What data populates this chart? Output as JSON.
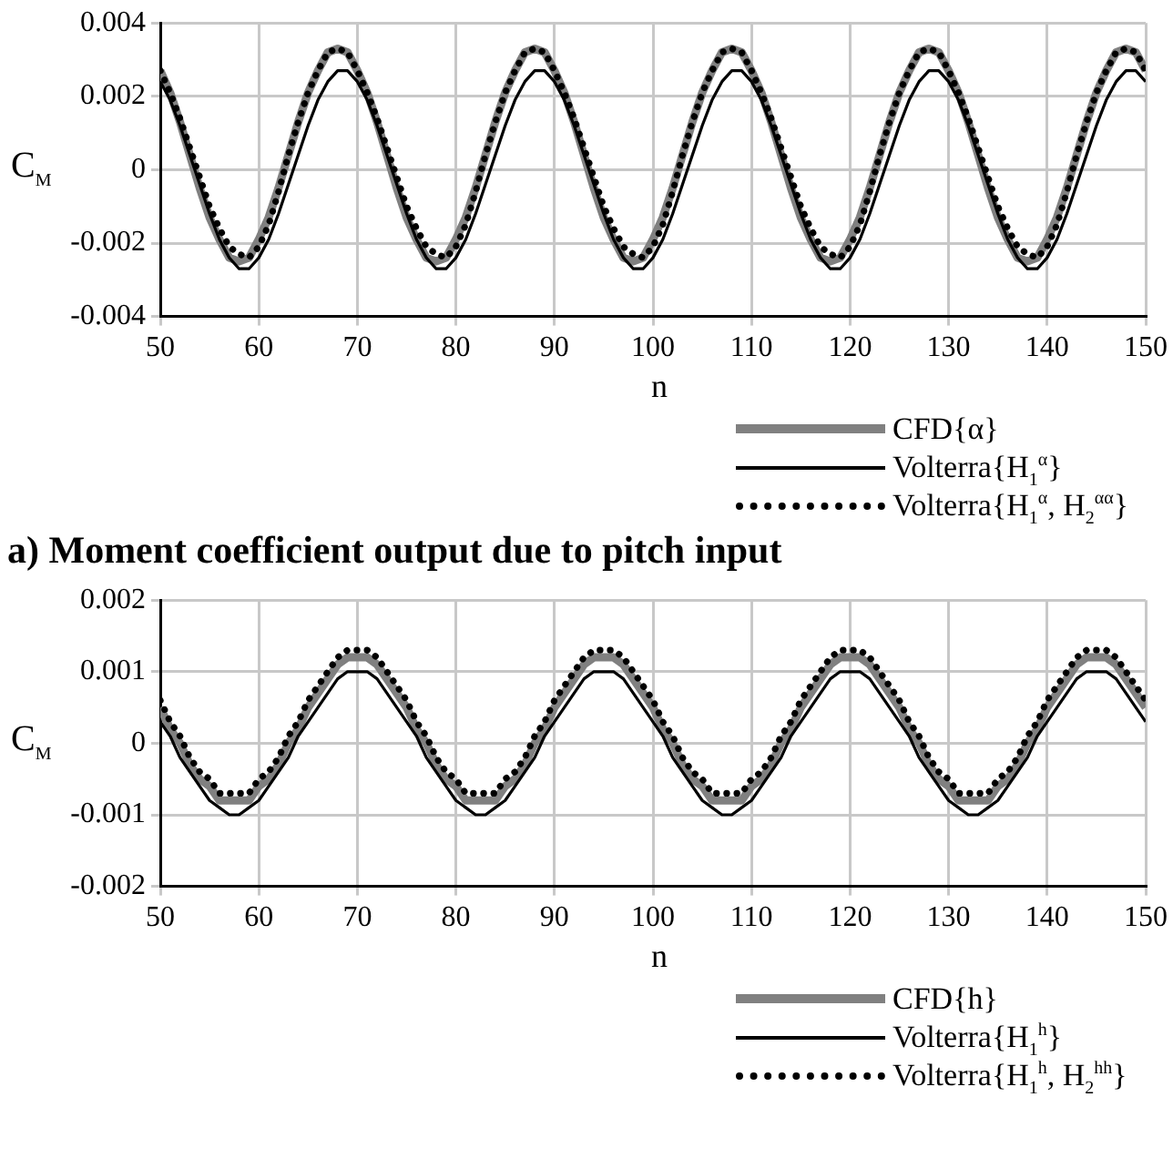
{
  "chart_data": [
    {
      "type": "line",
      "title": "a) Moment coefficient output due to pitch input",
      "xlabel": "n",
      "ylabel": "C$_{M}$",
      "x": [
        50,
        51,
        52,
        53,
        54,
        55,
        56,
        57,
        58,
        59,
        60,
        61,
        62,
        63,
        64,
        65,
        66,
        67,
        68,
        69,
        70,
        71,
        72,
        73,
        74,
        75,
        76,
        77,
        78,
        79,
        80,
        81,
        82,
        83,
        84,
        85,
        86,
        87,
        88,
        89,
        90,
        91,
        92,
        93,
        94,
        95,
        96,
        97,
        98,
        99,
        100,
        101,
        102,
        103,
        104,
        105,
        106,
        107,
        108,
        109,
        110,
        111,
        112,
        113,
        114,
        115,
        116,
        117,
        118,
        119,
        120,
        121,
        122,
        123,
        124,
        125,
        126,
        127,
        128,
        129,
        130,
        131,
        132,
        133,
        134,
        135,
        136,
        137,
        138,
        139,
        140,
        141,
        142,
        143,
        144,
        145,
        146,
        147,
        148,
        149,
        150
      ],
      "series": [
        {
          "name": "CFD{α}",
          "color": "#808080",
          "line_style": "solid",
          "values": [
            0.0027,
            0.0021,
            0.0013,
            0.0004,
            -0.0005,
            -0.0013,
            -0.0019,
            -0.0024,
            -0.0025,
            -0.0024,
            -0.0019,
            -0.0013,
            -0.0005,
            0.0004,
            0.0013,
            0.0021,
            0.0027,
            0.0032,
            0.0033,
            0.0032,
            0.0027,
            0.0021,
            0.0013,
            0.0004,
            -0.0005,
            -0.0013,
            -0.0019,
            -0.0024,
            -0.0025,
            -0.0024,
            -0.0019,
            -0.0013,
            -0.0005,
            0.0004,
            0.0013,
            0.0021,
            0.0027,
            0.0032,
            0.0033,
            0.0032,
            0.0027,
            0.0021,
            0.0013,
            0.0004,
            -0.0005,
            -0.0013,
            -0.0019,
            -0.0024,
            -0.0025,
            -0.0024,
            -0.0019,
            -0.0013,
            -0.0005,
            0.0004,
            0.0013,
            0.0021,
            0.0027,
            0.0032,
            0.0033,
            0.0032,
            0.0027,
            0.0021,
            0.0013,
            0.0004,
            -0.0005,
            -0.0013,
            -0.0019,
            -0.0024,
            -0.0025,
            -0.0024,
            -0.0019,
            -0.0013,
            -0.0005,
            0.0004,
            0.0013,
            0.0021,
            0.0027,
            0.0032,
            0.0033,
            0.0032,
            0.0027,
            0.0021,
            0.0013,
            0.0004,
            -0.0005,
            -0.0013,
            -0.0019,
            -0.0024,
            -0.0025,
            -0.0024,
            -0.0019,
            -0.0013,
            -0.0005,
            0.0004,
            0.0013,
            0.0021,
            0.0027,
            0.0032,
            0.0033,
            0.0032,
            0.0027
          ]
        },
        {
          "name": "Volterra{H$_{1}$$^{α}$}",
          "color": "#000000",
          "line_style": "solid",
          "values": [
            0.0024,
            0.0019,
            0.0012,
            0.0004,
            -0.0004,
            -0.0012,
            -0.0019,
            -0.0024,
            -0.0027,
            -0.0027,
            -0.0024,
            -0.0019,
            -0.0012,
            -0.0004,
            0.0004,
            0.0012,
            0.0019,
            0.0024,
            0.0027,
            0.0027,
            0.0024,
            0.0019,
            0.0012,
            0.0004,
            -0.0004,
            -0.0012,
            -0.0019,
            -0.0024,
            -0.0027,
            -0.0027,
            -0.0024,
            -0.0019,
            -0.0012,
            -0.0004,
            0.0004,
            0.0012,
            0.0019,
            0.0024,
            0.0027,
            0.0027,
            0.0024,
            0.0019,
            0.0012,
            0.0004,
            -0.0004,
            -0.0012,
            -0.0019,
            -0.0024,
            -0.0027,
            -0.0027,
            -0.0024,
            -0.0019,
            -0.0012,
            -0.0004,
            0.0004,
            0.0012,
            0.0019,
            0.0024,
            0.0027,
            0.0027,
            0.0024,
            0.0019,
            0.0012,
            0.0004,
            -0.0004,
            -0.0012,
            -0.0019,
            -0.0024,
            -0.0027,
            -0.0027,
            -0.0024,
            -0.0019,
            -0.0012,
            -0.0004,
            0.0004,
            0.0012,
            0.0019,
            0.0024,
            0.0027,
            0.0027,
            0.0024,
            0.0019,
            0.0012,
            0.0004,
            -0.0004,
            -0.0012,
            -0.0019,
            -0.0024,
            -0.0027,
            -0.0027,
            -0.0024,
            -0.0019,
            -0.0012,
            -0.0004,
            0.0004,
            0.0012,
            0.0019,
            0.0024,
            0.0027,
            0.0027,
            0.0024
          ]
        },
        {
          "name": "Volterra{H$_{1}$$^{α}$, H$_{2}$$^{αα}$}",
          "color": "#000000",
          "line_style": "dotted",
          "values": [
            0.0027,
            0.0021,
            0.0014,
            0.0006,
            -0.0002,
            -0.001,
            -0.0016,
            -0.0021,
            -0.0023,
            -0.0024,
            -0.0021,
            -0.0015,
            -0.0006,
            0.0004,
            0.0013,
            0.0021,
            0.0027,
            0.0032,
            0.0033,
            0.0032,
            0.0027,
            0.0021,
            0.0014,
            0.0006,
            -0.0002,
            -0.001,
            -0.0016,
            -0.0021,
            -0.0023,
            -0.0024,
            -0.0021,
            -0.0015,
            -0.0006,
            0.0004,
            0.0013,
            0.0021,
            0.0027,
            0.0032,
            0.0033,
            0.0032,
            0.0027,
            0.0021,
            0.0014,
            0.0006,
            -0.0002,
            -0.001,
            -0.0016,
            -0.0021,
            -0.0023,
            -0.0024,
            -0.0021,
            -0.0015,
            -0.0006,
            0.0004,
            0.0013,
            0.0021,
            0.0027,
            0.0032,
            0.0033,
            0.0032,
            0.0027,
            0.0021,
            0.0014,
            0.0006,
            -0.0002,
            -0.001,
            -0.0016,
            -0.0021,
            -0.0023,
            -0.0024,
            -0.0021,
            -0.0015,
            -0.0006,
            0.0004,
            0.0013,
            0.0021,
            0.0027,
            0.0032,
            0.0033,
            0.0032,
            0.0027,
            0.0021,
            0.0014,
            0.0006,
            -0.0002,
            -0.001,
            -0.0016,
            -0.0021,
            -0.0023,
            -0.0024,
            -0.0021,
            -0.0015,
            -0.0006,
            0.0004,
            0.0013,
            0.0021,
            0.0027,
            0.0032,
            0.0033,
            0.0032,
            0.0027
          ]
        }
      ],
      "xlim": [
        50,
        150
      ],
      "xticks": [
        50,
        60,
        70,
        80,
        90,
        100,
        110,
        120,
        130,
        140,
        150
      ],
      "ylim": [
        -0.004,
        0.004
      ],
      "yticks": [
        -0.004,
        -0.002,
        0,
        0.002,
        0.004
      ],
      "grid": true,
      "legend": "bottom right",
      "marker": "none"
    },
    {
      "type": "line",
      "xlabel": "n",
      "ylabel": "C$_{M}$",
      "x": [
        50,
        51,
        52,
        53,
        54,
        55,
        56,
        57,
        58,
        59,
        60,
        61,
        62,
        63,
        64,
        65,
        66,
        67,
        68,
        69,
        70,
        71,
        72,
        73,
        74,
        75,
        76,
        77,
        78,
        79,
        80,
        81,
        82,
        83,
        84,
        85,
        86,
        87,
        88,
        89,
        90,
        91,
        92,
        93,
        94,
        95,
        96,
        97,
        98,
        99,
        100,
        101,
        102,
        103,
        104,
        105,
        106,
        107,
        108,
        109,
        110,
        111,
        112,
        113,
        114,
        115,
        116,
        117,
        118,
        119,
        120,
        121,
        122,
        123,
        124,
        125,
        126,
        127,
        128,
        129,
        130,
        131,
        132,
        133,
        134,
        135,
        136,
        137,
        138,
        139,
        140,
        141,
        142,
        143,
        144,
        145,
        146,
        147,
        148,
        149,
        150
      ],
      "series": [
        {
          "name": "CFD{h}",
          "color": "#808080",
          "line_style": "solid",
          "values": [
            0.0005,
            0.0002,
            0,
            -0.0003,
            -0.0005,
            -0.0006,
            -0.0008,
            -0.0008,
            -0.0008,
            -0.0008,
            -0.0006,
            -0.0005,
            -0.0003,
            0,
            0.0002,
            0.0005,
            0.0007,
            0.0009,
            0.0011,
            0.0012,
            0.0012,
            0.0012,
            0.0011,
            0.0009,
            0.0007,
            0.0005,
            0.0002,
            0,
            -0.0003,
            -0.0005,
            -0.0006,
            -0.0008,
            -0.0008,
            -0.0008,
            -0.0008,
            -0.0006,
            -0.0005,
            -0.0003,
            0,
            0.0002,
            0.0005,
            0.0007,
            0.0009,
            0.0011,
            0.0012,
            0.0012,
            0.0012,
            0.0011,
            0.0009,
            0.0007,
            0.0005,
            0.0002,
            0,
            -0.0003,
            -0.0005,
            -0.0006,
            -0.0008,
            -0.0008,
            -0.0008,
            -0.0008,
            -0.0006,
            -0.0005,
            -0.0003,
            0,
            0.0002,
            0.0005,
            0.0007,
            0.0009,
            0.0011,
            0.0012,
            0.0012,
            0.0012,
            0.0011,
            0.0009,
            0.0007,
            0.0005,
            0.0002,
            0,
            -0.0003,
            -0.0005,
            -0.0006,
            -0.0008,
            -0.0008,
            -0.0008,
            -0.0008,
            -0.0006,
            -0.0005,
            -0.0003,
            0,
            0.0002,
            0.0005,
            0.0007,
            0.0009,
            0.0011,
            0.0012,
            0.0012,
            0.0012,
            0.0011,
            0.0009,
            0.0007,
            0.0005
          ]
        },
        {
          "name": "Volterra{H$_{1}$$^{h}$}",
          "color": "#000000",
          "line_style": "solid",
          "values": [
            0.0003,
            0.0001,
            -0.0002,
            -0.0004,
            -0.0006,
            -0.0008,
            -0.0009,
            -0.001,
            -0.001,
            -0.0009,
            -0.0008,
            -0.0006,
            -0.0004,
            -0.0002,
            0.0001,
            0.0003,
            0.0005,
            0.0007,
            0.0009,
            0.001,
            0.001,
            0.001,
            0.0009,
            0.0007,
            0.0005,
            0.0003,
            0.0001,
            -0.0002,
            -0.0004,
            -0.0006,
            -0.0008,
            -0.0009,
            -0.001,
            -0.001,
            -0.0009,
            -0.0008,
            -0.0006,
            -0.0004,
            -0.0002,
            0.0001,
            0.0003,
            0.0005,
            0.0007,
            0.0009,
            0.001,
            0.001,
            0.001,
            0.0009,
            0.0007,
            0.0005,
            0.0003,
            0.0001,
            -0.0002,
            -0.0004,
            -0.0006,
            -0.0008,
            -0.0009,
            -0.001,
            -0.001,
            -0.0009,
            -0.0008,
            -0.0006,
            -0.0004,
            -0.0002,
            0.0001,
            0.0003,
            0.0005,
            0.0007,
            0.0009,
            0.001,
            0.001,
            0.001,
            0.0009,
            0.0007,
            0.0005,
            0.0003,
            0.0001,
            -0.0002,
            -0.0004,
            -0.0006,
            -0.0008,
            -0.0009,
            -0.001,
            -0.001,
            -0.0009,
            -0.0008,
            -0.0006,
            -0.0004,
            -0.0002,
            0.0001,
            0.0003,
            0.0005,
            0.0007,
            0.0009,
            0.001,
            0.001,
            0.001,
            0.0009,
            0.0007,
            0.0005,
            0.0003
          ]
        },
        {
          "name": "Volterra{H$_{1}$$^{h}$, H$_{2}$$^{hh}$}",
          "color": "#000000",
          "line_style": "dotted",
          "values": [
            0.0006,
            0.0003,
            0.0001,
            -0.0002,
            -0.0004,
            -0.0005,
            -0.0007,
            -0.0007,
            -0.0007,
            -0.0007,
            -0.0005,
            -0.0004,
            -0.0002,
            0.0001,
            0.0003,
            0.0006,
            0.0008,
            0.001,
            0.0012,
            0.0013,
            0.0013,
            0.0013,
            0.0012,
            0.001,
            0.0008,
            0.0006,
            0.0003,
            0.0001,
            -0.0002,
            -0.0004,
            -0.0005,
            -0.0007,
            -0.0007,
            -0.0007,
            -0.0007,
            -0.0005,
            -0.0004,
            -0.0002,
            0.0001,
            0.0003,
            0.0006,
            0.0008,
            0.001,
            0.0012,
            0.0013,
            0.0013,
            0.0013,
            0.0012,
            0.001,
            0.0008,
            0.0006,
            0.0003,
            0.0001,
            -0.0002,
            -0.0004,
            -0.0005,
            -0.0007,
            -0.0007,
            -0.0007,
            -0.0007,
            -0.0005,
            -0.0004,
            -0.0002,
            0.0001,
            0.0003,
            0.0006,
            0.0008,
            0.001,
            0.0012,
            0.0013,
            0.0013,
            0.0013,
            0.0012,
            0.001,
            0.0008,
            0.0006,
            0.0003,
            0.0001,
            -0.0002,
            -0.0004,
            -0.0005,
            -0.0007,
            -0.0007,
            -0.0007,
            -0.0007,
            -0.0005,
            -0.0004,
            -0.0002,
            0.0001,
            0.0003,
            0.0006,
            0.0008,
            0.001,
            0.0012,
            0.0013,
            0.0013,
            0.0013,
            0.0012,
            0.001,
            0.0008,
            0.0006
          ]
        }
      ],
      "xlim": [
        50,
        150
      ],
      "xticks": [
        50,
        60,
        70,
        80,
        90,
        100,
        110,
        120,
        130,
        140,
        150
      ],
      "ylim": [
        -0.002,
        0.002
      ],
      "yticks": [
        -0.002,
        -0.001,
        0,
        0.001,
        0.002
      ],
      "grid": true,
      "legend": "bottom right",
      "marker": "none"
    }
  ]
}
